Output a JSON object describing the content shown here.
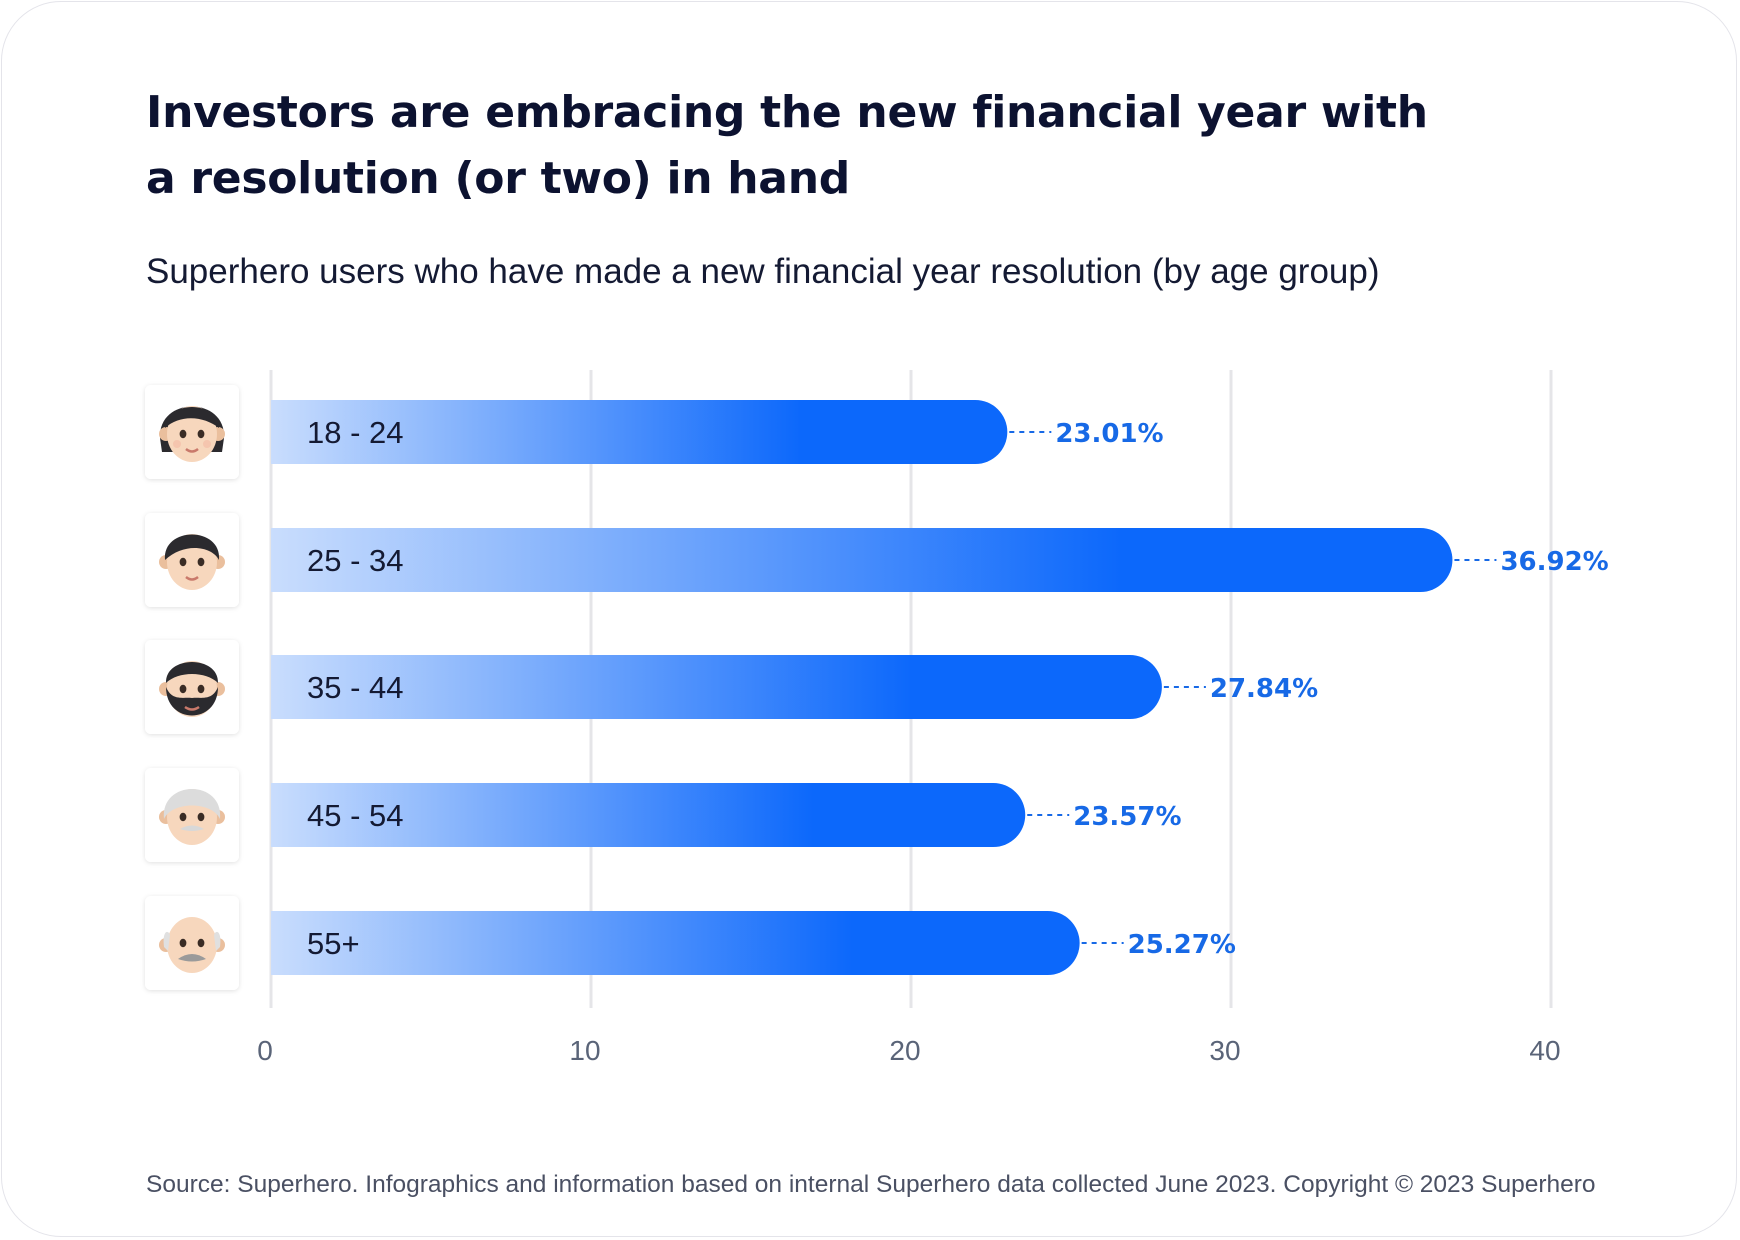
{
  "title": "Investors are embracing the new financial year with a resolution (or two) in hand",
  "subtitle": "Superhero users who have made a new financial year resolution (by age group)",
  "source": "Source: Superhero. Infographics and information based on internal Superhero data collected June 2023. Copyright © 2023 Superhero",
  "colors": {
    "bar_start": "#c9ddfd",
    "bar_end": "#0c68fb",
    "value_label": "#1769e6",
    "grid": "#e5e5e8",
    "axis_text": "#5a6478"
  },
  "chart_data": {
    "type": "bar",
    "orientation": "horizontal",
    "title": "Investors are embracing the new financial year with a resolution (or two) in hand",
    "subtitle": "Superhero users who have made a new financial year resolution (by age group)",
    "categories": [
      "18-24",
      "25-34",
      "35-44",
      "45-54",
      "55+"
    ],
    "category_labels": [
      "18 - 24",
      "25 - 34",
      "35 - 44",
      "45 - 54",
      "55+"
    ],
    "values": [
      23.01,
      36.92,
      27.84,
      23.57,
      25.27
    ],
    "value_labels": [
      "23.01%",
      "36.92%",
      "27.84%",
      "23.57%",
      "25.27%"
    ],
    "icons": [
      "child-face-icon",
      "young-person-face-icon",
      "bearded-man-face-icon",
      "grey-haired-man-face-icon",
      "older-man-face-icon"
    ],
    "xlim": [
      0,
      40
    ],
    "xticks": [
      0,
      10,
      20,
      30,
      40
    ],
    "xlabel": "",
    "ylabel": "",
    "grid": true,
    "legend": "none"
  }
}
